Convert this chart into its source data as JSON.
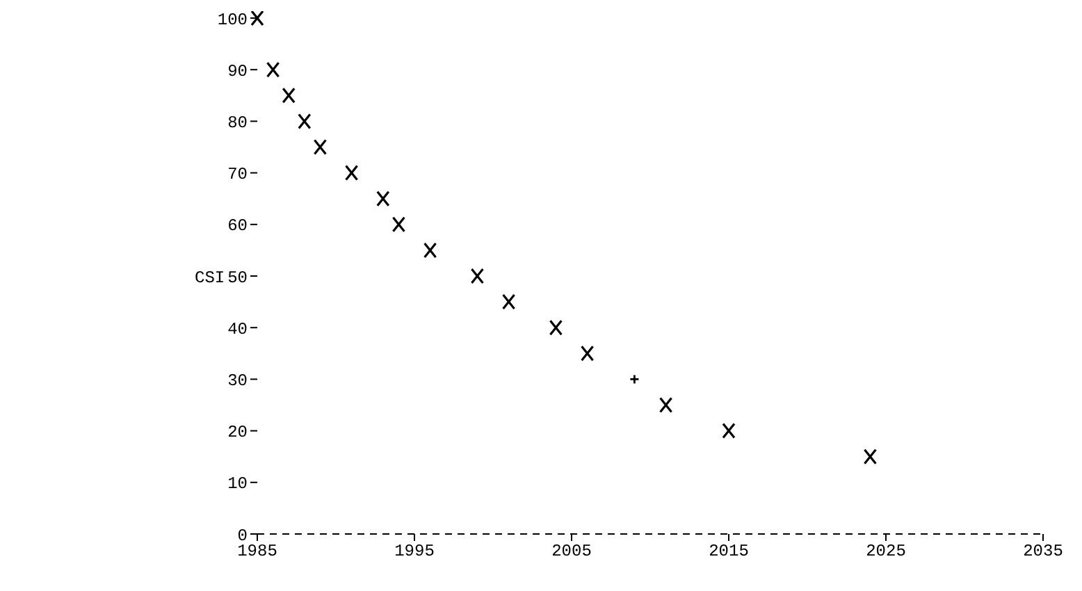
{
  "chart_data": {
    "type": "scatter",
    "ylabel": "CSI",
    "xlim": [
      1985,
      2035
    ],
    "xticks": [
      1985,
      1995,
      2005,
      2015,
      2025,
      2035
    ],
    "ylim": [
      0,
      100
    ],
    "yticks": [
      0,
      10,
      20,
      30,
      40,
      50,
      60,
      70,
      80,
      90,
      100
    ],
    "grid": false,
    "legend": false,
    "series": [
      {
        "color": "#000000",
        "marker": "cross",
        "x": [
          1985,
          1986,
          1987,
          1988,
          1989,
          1991,
          1993,
          1994,
          1996,
          1999,
          2001,
          2004,
          2006,
          2011,
          2015,
          2024
        ],
        "values": [
          100,
          90,
          85,
          80,
          75,
          70,
          65,
          60,
          55,
          50,
          45,
          40,
          35,
          25,
          20,
          15
        ]
      },
      {
        "color": "#000000",
        "marker": "plus",
        "x": [
          2009
        ],
        "values": [
          30
        ]
      }
    ]
  }
}
